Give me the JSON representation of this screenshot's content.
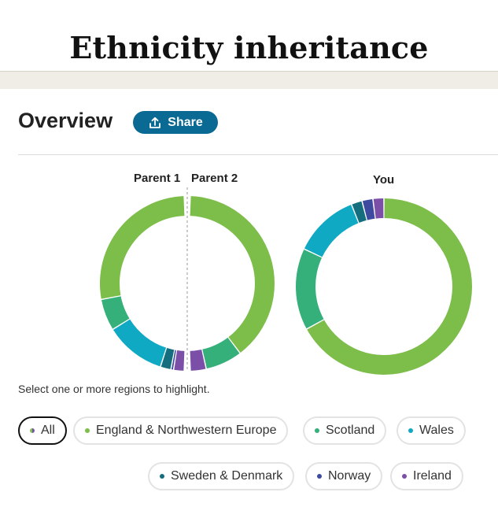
{
  "header": {
    "title": "Ethnicity inheritance"
  },
  "overview": {
    "title": "Overview",
    "share_label": "Share"
  },
  "charts": {
    "parent1_label": "Parent 1",
    "parent2_label": "Parent 2",
    "you_label": "You"
  },
  "colors": {
    "england": "#7dbd4a",
    "scotland": "#35b07a",
    "wales": "#10a9c4",
    "sweden": "#156e7e",
    "norway": "#3e4aa0",
    "ireland": "#7b4fa8",
    "share_button": "#0a6a94"
  },
  "chart_data": [
    {
      "type": "donut",
      "name": "Parent 1",
      "half": "left",
      "segments": [
        {
          "region": "England & Northwestern Europe",
          "value": 56
        },
        {
          "region": "Scotland",
          "value": 12
        },
        {
          "region": "Wales",
          "value": 23
        },
        {
          "region": "Sweden & Denmark",
          "value": 4
        },
        {
          "region": "Norway",
          "value": 1
        },
        {
          "region": "Ireland",
          "value": 4
        }
      ]
    },
    {
      "type": "donut",
      "name": "Parent 2",
      "half": "right",
      "segments": [
        {
          "region": "England & Northwestern Europe",
          "value": 80
        },
        {
          "region": "Scotland",
          "value": 14
        },
        {
          "region": "Ireland",
          "value": 6
        }
      ]
    },
    {
      "type": "donut",
      "name": "You",
      "half": "full",
      "segments": [
        {
          "region": "England & Northwestern Europe",
          "value": 67
        },
        {
          "region": "Scotland",
          "value": 15
        },
        {
          "region": "Wales",
          "value": 12
        },
        {
          "region": "Sweden & Denmark",
          "value": 2
        },
        {
          "region": "Norway",
          "value": 2
        },
        {
          "region": "Ireland",
          "value": 2
        }
      ]
    }
  ],
  "filters": {
    "helper_text": "Select one or more regions to highlight.",
    "pills": [
      {
        "label": "All",
        "active": true
      },
      {
        "label": "England & Northwestern Europe",
        "color": "#7dbd4a"
      },
      {
        "label": "Scotland",
        "color": "#35b07a"
      },
      {
        "label": "Wales",
        "color": "#10a9c4"
      },
      {
        "label": "Sweden & Denmark",
        "color": "#156e7e"
      },
      {
        "label": "Norway",
        "color": "#3e4aa0"
      },
      {
        "label": "Ireland",
        "color": "#7b4fa8"
      }
    ]
  }
}
